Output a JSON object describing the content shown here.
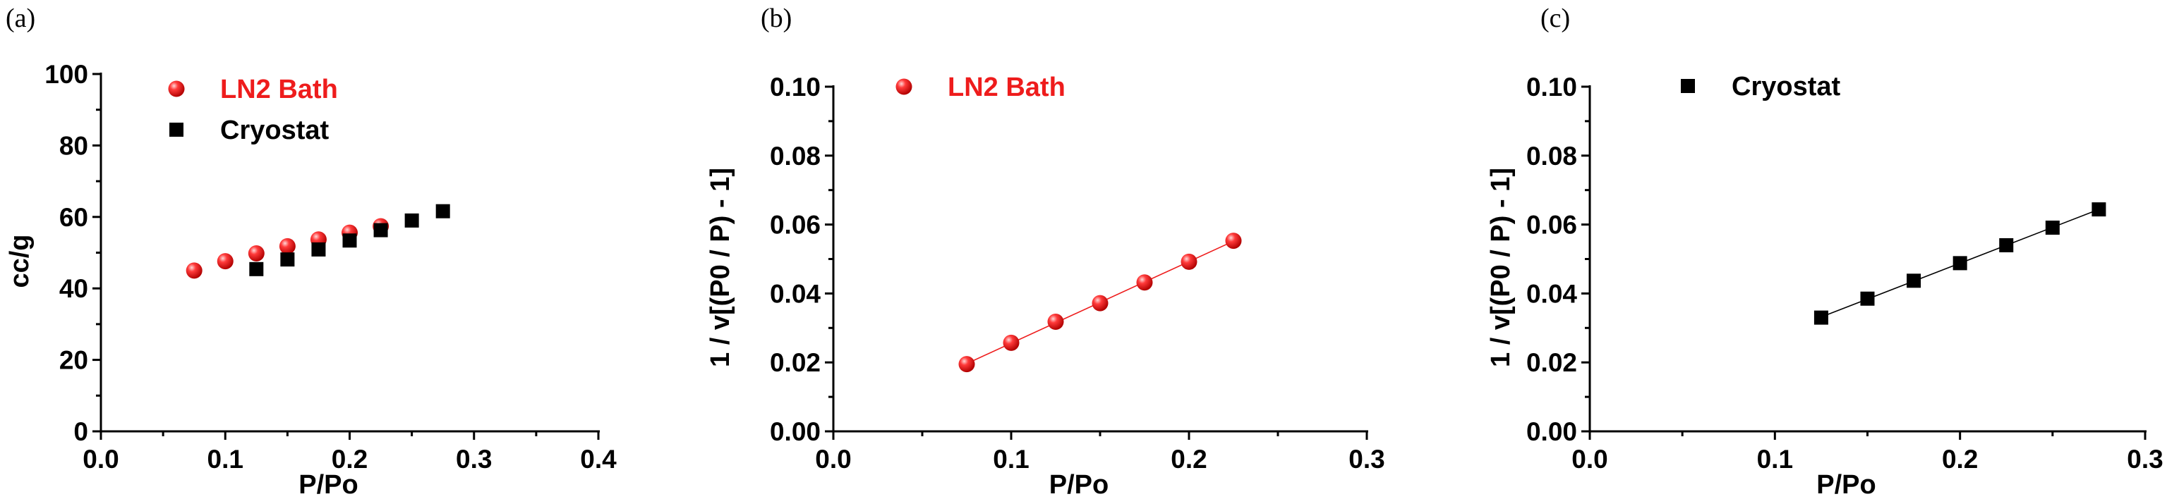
{
  "chart_data": [
    {
      "type": "scatter",
      "panel_label": "(a)",
      "xlabel": "P/Po",
      "ylabel": "cc/g",
      "xlim": [
        0.0,
        0.4
      ],
      "ylim": [
        0,
        100
      ],
      "xticks": [
        0.0,
        0.1,
        0.2,
        0.3,
        0.4
      ],
      "yticks": [
        0,
        20,
        40,
        60,
        80,
        100
      ],
      "xtick_labels": [
        "0.0",
        "0.1",
        "0.2",
        "0.3",
        "0.4"
      ],
      "ytick_labels": [
        "0",
        "20",
        "40",
        "60",
        "80",
        "100"
      ],
      "grid": false,
      "legend_position": "top-left",
      "series": [
        {
          "name": "LN2 Bath",
          "marker": "sphere",
          "color": "#ee1c1c",
          "fit_line": false,
          "x": [
            0.075,
            0.1,
            0.125,
            0.15,
            0.175,
            0.2,
            0.225
          ],
          "y": [
            45.0,
            47.6,
            49.8,
            51.8,
            53.7,
            55.6,
            57.4
          ]
        },
        {
          "name": "Cryostat",
          "marker": "square",
          "color": "#000000",
          "fit_line": false,
          "x": [
            0.125,
            0.15,
            0.175,
            0.2,
            0.225,
            0.25,
            0.275
          ],
          "y": [
            45.4,
            48.1,
            50.9,
            53.4,
            56.3,
            59.0,
            61.6
          ]
        }
      ]
    },
    {
      "type": "scatter",
      "panel_label": "(b)",
      "xlabel": "P/Po",
      "ylabel": "1 / v[(P0 / P) - 1]",
      "xlim": [
        0.0,
        0.3
      ],
      "ylim": [
        0.0,
        0.1
      ],
      "xticks": [
        0.0,
        0.1,
        0.2,
        0.3
      ],
      "yticks": [
        0.0,
        0.02,
        0.04,
        0.06,
        0.08,
        0.1
      ],
      "xtick_labels": [
        "0.0",
        "0.1",
        "0.2",
        "0.3"
      ],
      "ytick_labels": [
        "0.00",
        "0.02",
        "0.04",
        "0.06",
        "0.08",
        "0.10"
      ],
      "grid": false,
      "legend_position": "top-left",
      "series": [
        {
          "name": "LN2 Bath",
          "marker": "sphere",
          "color": "#ee1c1c",
          "fit_line": true,
          "x": [
            0.075,
            0.1,
            0.125,
            0.15,
            0.175,
            0.2,
            0.225
          ],
          "y": [
            0.0195,
            0.0257,
            0.0318,
            0.0372,
            0.0432,
            0.0492,
            0.0553
          ]
        }
      ]
    },
    {
      "type": "scatter",
      "panel_label": "(c)",
      "xlabel": "P/Po",
      "ylabel": "1 / v[(P0 / P) - 1]",
      "xlim": [
        0.0,
        0.3
      ],
      "ylim": [
        0.0,
        0.1
      ],
      "xticks": [
        0.0,
        0.1,
        0.2,
        0.3
      ],
      "yticks": [
        0.0,
        0.02,
        0.04,
        0.06,
        0.08,
        0.1
      ],
      "xtick_labels": [
        "0.0",
        "0.1",
        "0.2",
        "0.3"
      ],
      "ytick_labels": [
        "0.00",
        "0.02",
        "0.04",
        "0.06",
        "0.08",
        "0.10"
      ],
      "grid": false,
      "legend_position": "top-left",
      "series": [
        {
          "name": "Cryostat",
          "marker": "square",
          "color": "#000000",
          "fit_line": true,
          "x": [
            0.125,
            0.15,
            0.175,
            0.2,
            0.225,
            0.25,
            0.275
          ],
          "y": [
            0.033,
            0.0385,
            0.0437,
            0.0488,
            0.054,
            0.0591,
            0.0644
          ]
        }
      ]
    }
  ]
}
